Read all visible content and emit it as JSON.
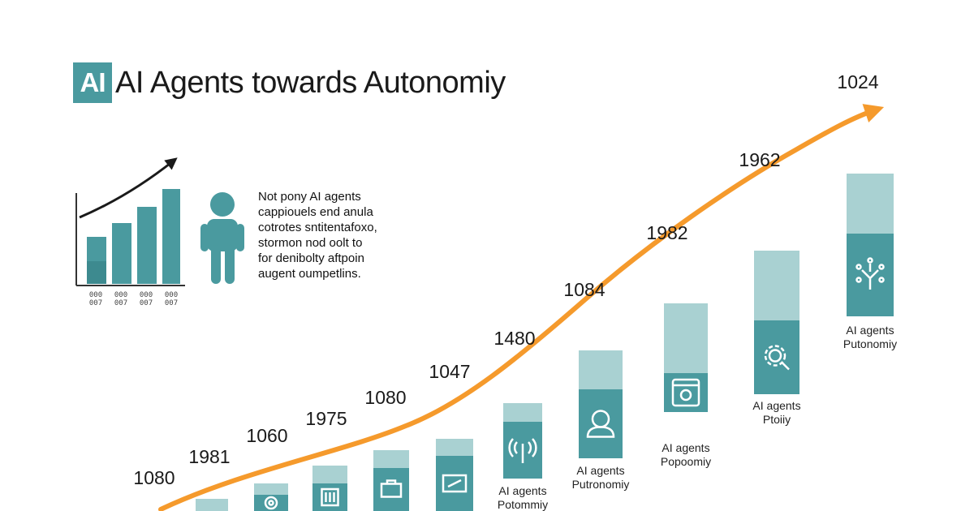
{
  "header": {
    "badge": "AI",
    "title": "AI Agents towards Autonomiy"
  },
  "description": {
    "lines": [
      "Not pony AI agents",
      "cappiouels end anula",
      "cotrotes sntitentafoxo,",
      "stormon nod oolt to",
      "for denibolty aftpoin",
      "augent oumpetlins."
    ]
  },
  "mini_chart": {
    "tick_labels": [
      [
        "000",
        "007"
      ],
      [
        "000",
        "007"
      ],
      [
        "000",
        "007"
      ],
      [
        "000",
        "007"
      ]
    ]
  },
  "colors": {
    "teal_dark": "#4a9a9f",
    "teal_light": "#a9d1d2",
    "orange": "#f59a2c",
    "text": "#1a1a1a"
  },
  "chart_data": {
    "type": "bar",
    "title": "AI Agents towards Autonomiy",
    "trend_labels": [
      "1080",
      "1981",
      "1060",
      "1975",
      "1080",
      "1047",
      "1480",
      "1084",
      "1982",
      "1962",
      "1024"
    ],
    "bars": [
      {
        "icon": "none-icon",
        "caption": []
      },
      {
        "icon": "gear-icon",
        "caption": []
      },
      {
        "icon": "document-icon",
        "caption": []
      },
      {
        "icon": "briefcase-icon",
        "caption": []
      },
      {
        "icon": "tools-icon",
        "caption": []
      },
      {
        "icon": "signal-icon",
        "caption": [
          "AI agents",
          "Potommiy"
        ]
      },
      {
        "icon": "person-icon",
        "caption": [
          "AI agents",
          "Putronomiy"
        ]
      },
      {
        "icon": "device-icon",
        "caption": [
          "AI agents",
          "Popoomiy"
        ]
      },
      {
        "icon": "search-gear-icon",
        "caption": [
          "AI agents",
          "Ptoiiy"
        ]
      },
      {
        "icon": "network-icon",
        "caption": [
          "AI agents",
          "Putonomiy"
        ]
      }
    ]
  }
}
